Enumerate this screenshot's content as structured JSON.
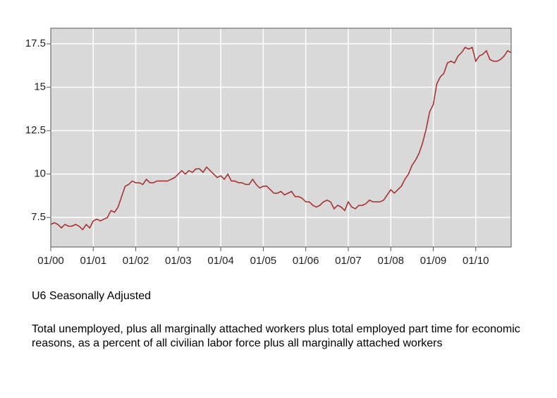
{
  "chart_data": {
    "type": "line",
    "title": "U6 Seasonally Adjusted",
    "subtitle": "Total unemployed, plus all marginally attached workers plus total employed part time for economic reasons, as a percent of all civilian labor force plus all marginally attached workers",
    "categories": [
      "01/00",
      null,
      null,
      null,
      null,
      null,
      null,
      null,
      null,
      null,
      null,
      null,
      "01/01",
      null,
      null,
      null,
      null,
      null,
      null,
      null,
      null,
      null,
      null,
      null,
      "01/02",
      null,
      null,
      null,
      null,
      null,
      null,
      null,
      null,
      null,
      null,
      null,
      "01/03",
      null,
      null,
      null,
      null,
      null,
      null,
      null,
      null,
      null,
      null,
      null,
      "01/04",
      null,
      null,
      null,
      null,
      null,
      null,
      null,
      null,
      null,
      null,
      null,
      "01/05",
      null,
      null,
      null,
      null,
      null,
      null,
      null,
      null,
      null,
      null,
      null,
      "01/06",
      null,
      null,
      null,
      null,
      null,
      null,
      null,
      null,
      null,
      null,
      null,
      "01/07",
      null,
      null,
      null,
      null,
      null,
      null,
      null,
      null,
      null,
      null,
      null,
      "01/08",
      null,
      null,
      null,
      null,
      null,
      null,
      null,
      null,
      null,
      null,
      null,
      "01/09",
      null,
      null,
      null,
      null,
      null,
      null,
      null,
      null,
      null,
      null,
      null,
      "01/10",
      null,
      null,
      null,
      null,
      null,
      null,
      null,
      null,
      null,
      null
    ],
    "series": [
      {
        "name": "U6",
        "color": "#a52a2a",
        "values": [
          7.1,
          7.2,
          7.1,
          6.9,
          7.1,
          7.0,
          7.0,
          7.1,
          7.0,
          6.8,
          7.1,
          6.9,
          7.3,
          7.4,
          7.3,
          7.4,
          7.5,
          7.9,
          7.8,
          8.1,
          8.7,
          9.3,
          9.4,
          9.6,
          9.5,
          9.5,
          9.4,
          9.7,
          9.5,
          9.5,
          9.6,
          9.6,
          9.6,
          9.6,
          9.7,
          9.8,
          10.0,
          10.2,
          10.0,
          10.2,
          10.1,
          10.3,
          10.3,
          10.1,
          10.4,
          10.2,
          10.0,
          9.8,
          9.9,
          9.7,
          10.0,
          9.6,
          9.6,
          9.5,
          9.5,
          9.4,
          9.4,
          9.7,
          9.4,
          9.2,
          9.3,
          9.3,
          9.1,
          8.9,
          8.9,
          9.0,
          8.8,
          8.9,
          9.0,
          8.7,
          8.7,
          8.6,
          8.4,
          8.4,
          8.2,
          8.1,
          8.2,
          8.4,
          8.5,
          8.4,
          8.0,
          8.2,
          8.1,
          7.9,
          8.4,
          8.1,
          8.0,
          8.2,
          8.2,
          8.3,
          8.5,
          8.4,
          8.4,
          8.4,
          8.5,
          8.8,
          9.1,
          8.9,
          9.1,
          9.3,
          9.7,
          10.0,
          10.5,
          10.8,
          11.2,
          11.8,
          12.6,
          13.6,
          14.0,
          15.2,
          15.6,
          15.8,
          16.4,
          16.5,
          16.4,
          16.8,
          17.0,
          17.3,
          17.2,
          17.3,
          16.5,
          16.8,
          16.9,
          17.1,
          16.6,
          16.5,
          16.5,
          16.6,
          16.8,
          17.1,
          17.0
        ]
      }
    ],
    "ylim": [
      5.8,
      18.4
    ],
    "yticks": [
      7.5,
      10,
      12.5,
      15,
      17.5
    ],
    "grid": true
  }
}
